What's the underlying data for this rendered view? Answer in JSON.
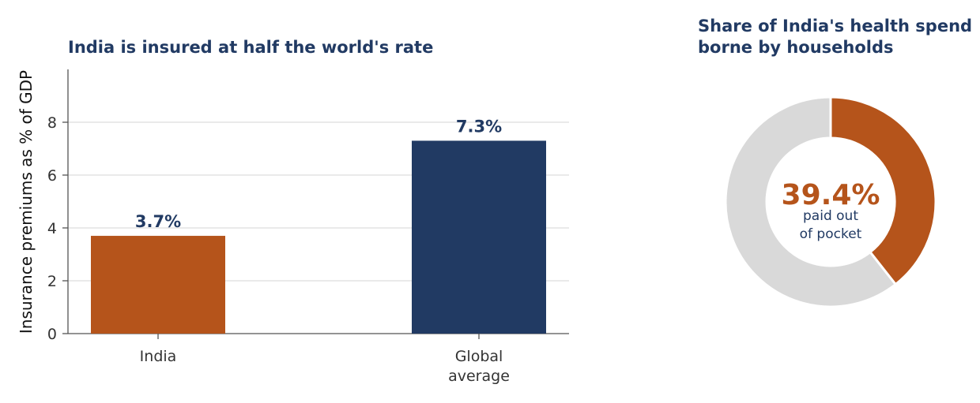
{
  "chart_data": [
    {
      "type": "bar",
      "title": "India is insured at half the world's rate",
      "ylabel": "Insurance premiums as % of GDP",
      "xlabel": "",
      "ylim": [
        0,
        10
      ],
      "yticks": [
        0,
        2,
        4,
        6,
        8
      ],
      "grid": true,
      "categories": [
        {
          "lines": [
            "India"
          ]
        },
        {
          "lines": [
            "Global",
            "average"
          ]
        }
      ],
      "values": [
        3.7,
        7.3
      ],
      "data_labels": [
        "3.7%",
        "7.3%"
      ],
      "colors": [
        "#b5541b",
        "#213a63"
      ]
    },
    {
      "type": "pie",
      "title_lines": [
        "Share of India's health spend",
        "borne by households"
      ],
      "slices": [
        {
          "value": 39.4,
          "color": "#b5541b"
        },
        {
          "value": 60.6,
          "color": "#d9d9d9"
        }
      ],
      "center_value": "39.4%",
      "center_value_color": "#b5541b",
      "center_text_lines": [
        "paid out",
        "of pocket"
      ]
    }
  ]
}
